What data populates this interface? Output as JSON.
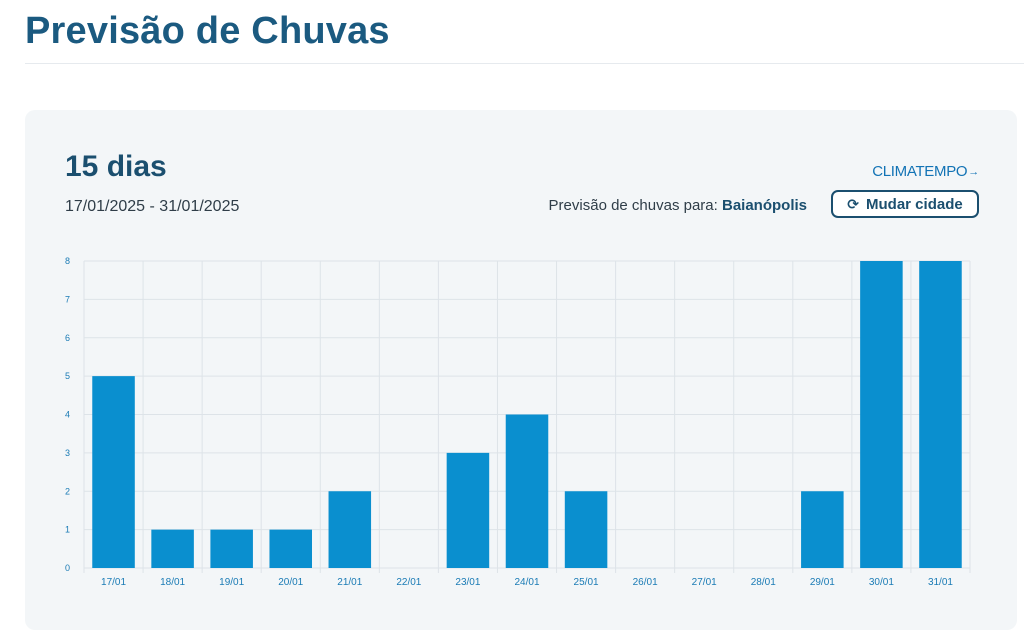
{
  "page": {
    "title": "Previsão de Chuvas"
  },
  "card": {
    "title": "15 dias",
    "date_range": "17/01/2025 - 31/01/2025",
    "brand": "CLIMATEMPO",
    "location_prefix": "Previsão de chuvas para:",
    "location_city": "Baianópolis",
    "change_city_label": "Mudar cidade"
  },
  "colors": {
    "bar": "#0a8fcf",
    "title": "#1b5a80",
    "tick": "#1a7bb5",
    "grid": "#dde3e8"
  },
  "chart_data": {
    "type": "bar",
    "categories": [
      "17/01",
      "18/01",
      "19/01",
      "20/01",
      "21/01",
      "22/01",
      "23/01",
      "24/01",
      "25/01",
      "26/01",
      "27/01",
      "28/01",
      "29/01",
      "30/01",
      "31/01"
    ],
    "values": [
      5,
      1,
      1,
      1,
      2,
      0,
      3,
      4,
      2,
      0,
      0,
      0,
      2,
      8,
      8
    ],
    "title": "",
    "xlabel": "",
    "ylabel": "",
    "ylim": [
      0,
      8
    ],
    "yticks": [
      0,
      1,
      2,
      3,
      4,
      5,
      6,
      7,
      8
    ],
    "grid": true
  }
}
